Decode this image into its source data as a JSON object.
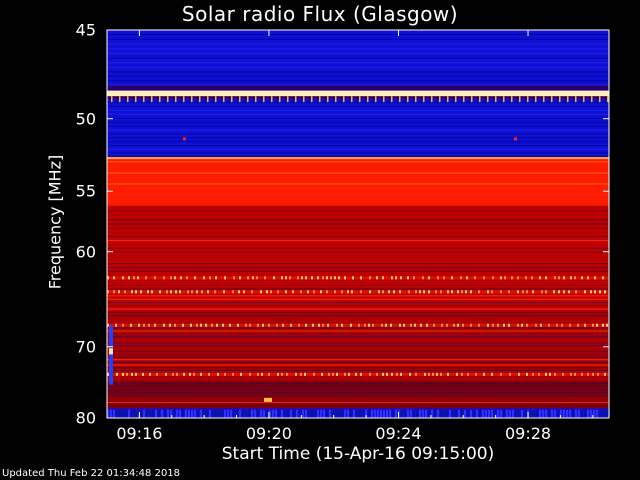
{
  "chart_data": {
    "type": "heatmap",
    "title": "Solar radio Flux (Glasgow)",
    "xlabel": "Start Time (15-Apr-16 09:15:00)",
    "ylabel": "Frequency [MHz]",
    "xlim": [
      "09:15:00",
      "09:30:30"
    ],
    "ylim": [
      45,
      80
    ],
    "x_ticks": [
      "09:16",
      "09:20",
      "09:24",
      "09:28"
    ],
    "y_ticks": [
      45,
      50,
      55,
      60,
      70,
      80
    ],
    "y_scale": "reciprocal",
    "colormap": [
      "#00008b",
      "#0000ff",
      "#800000",
      "#e00000",
      "#ff6000",
      "#ffd060",
      "#ffffff"
    ],
    "bands": [
      {
        "freq_mhz": [
          45.0,
          48.0
        ],
        "level": "low"
      },
      {
        "freq_mhz": [
          48.3,
          48.6
        ],
        "level": "saturated"
      },
      {
        "freq_mhz": [
          48.8,
          52.5
        ],
        "level": "low"
      },
      {
        "freq_mhz": [
          52.5,
          56.0
        ],
        "level": "high"
      },
      {
        "freq_mhz": [
          56.0,
          66.0
        ],
        "level": "medium"
      },
      {
        "freq_mhz": [
          66.0,
          74.5
        ],
        "level": "medium-low"
      },
      {
        "freq_mhz": [
          74.5,
          78.5
        ],
        "level": "low-medium"
      },
      {
        "freq_mhz": [
          78.5,
          80.0
        ],
        "level": "low"
      }
    ]
  },
  "footer": "Updated Thu Feb 22 01:34:48 2018"
}
